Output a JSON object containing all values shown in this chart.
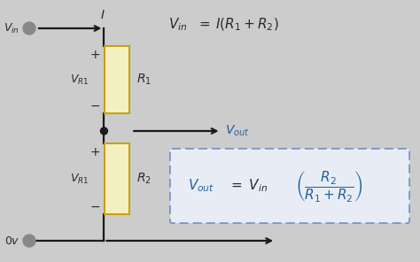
{
  "bg_color": "#cccccc",
  "wire_color": "#1a1a1a",
  "resistor_fill": "#f5f0c0",
  "resistor_edge": "#c8a000",
  "text_color_dark": "#2a2a2a",
  "text_color_blue": "#2060a0",
  "dot_color": "#888888",
  "dashed_box_color": "#7090c0",
  "dashed_box_fill": "#e8edf5",
  "fig_width": 4.74,
  "fig_height": 2.96,
  "dpi": 100
}
